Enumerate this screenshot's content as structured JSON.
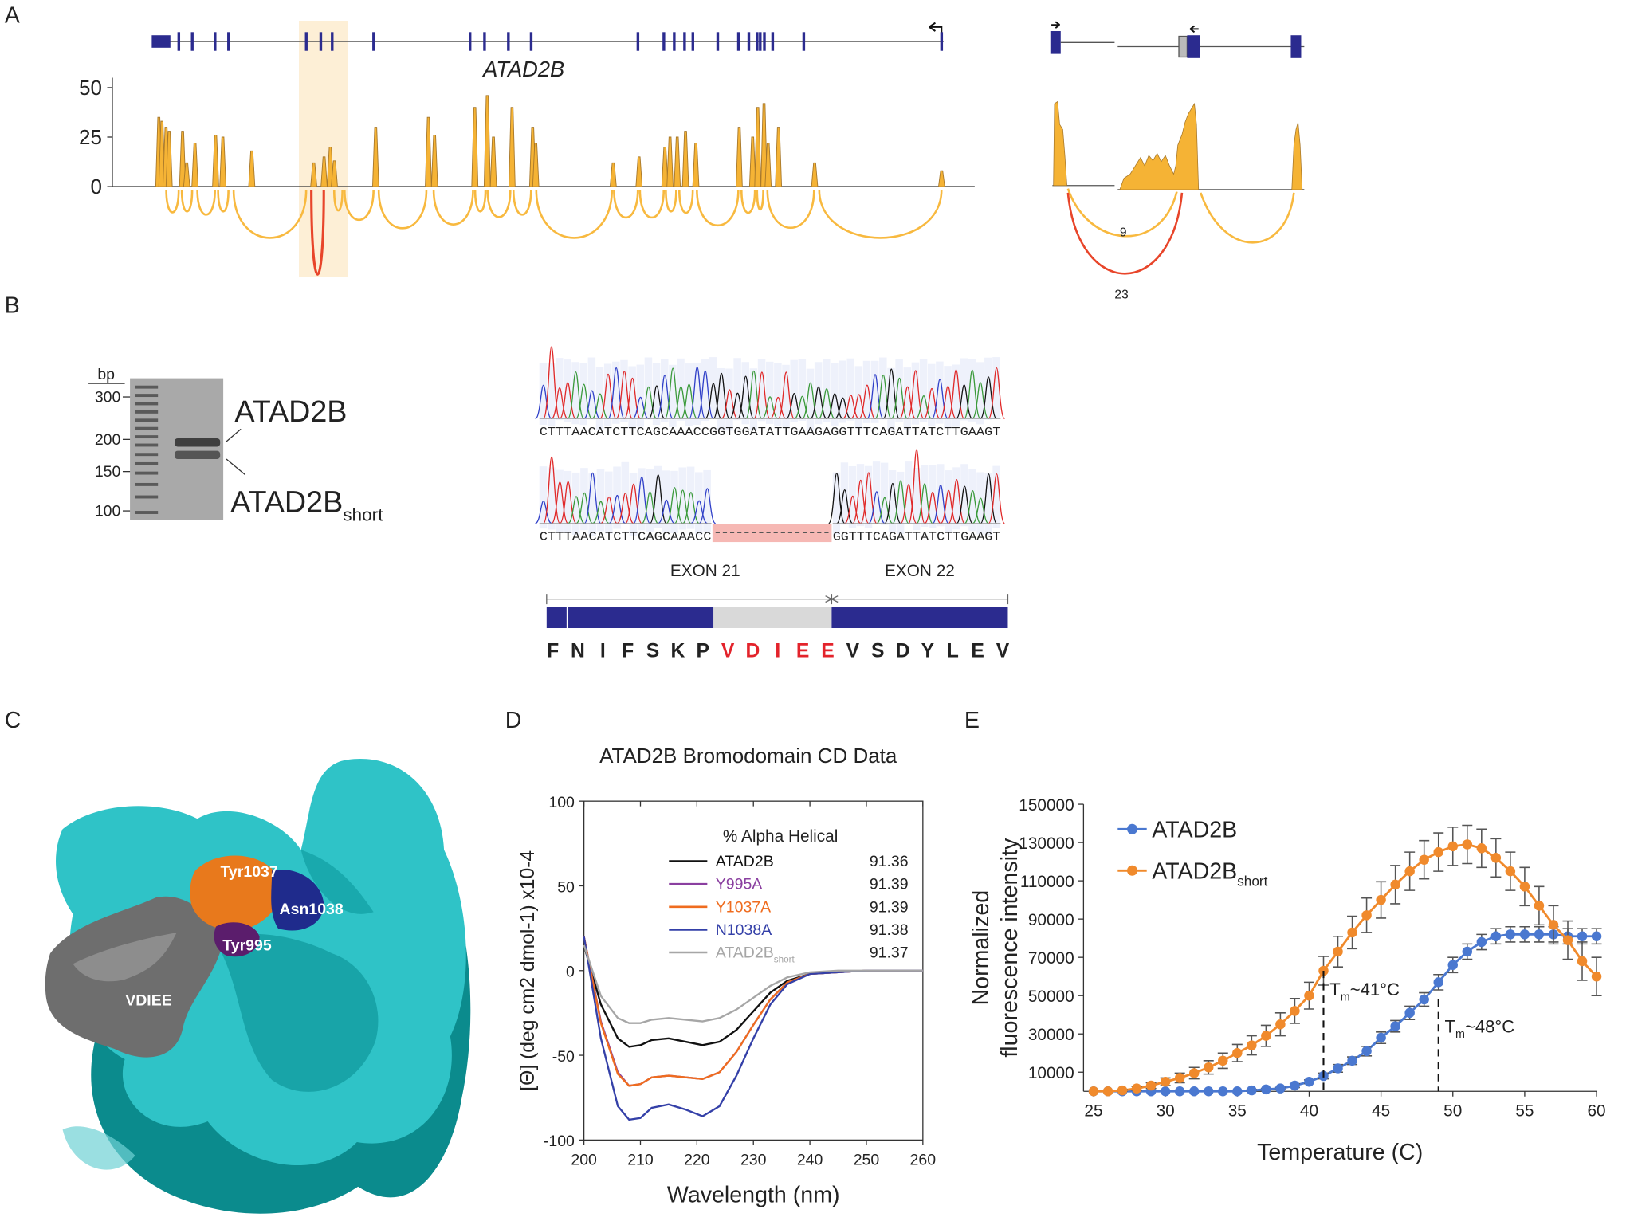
{
  "panel_labels": [
    "A",
    "B",
    "C",
    "D",
    "E"
  ],
  "panel_a": {
    "gene": "ATAD2B",
    "junction_counts": [
      "9",
      "23"
    ]
  },
  "panel_b": {
    "ladder_unit": "bp",
    "ladder": [
      300,
      200,
      150,
      100
    ],
    "band_labels": [
      {
        "name": "ATAD2B"
      },
      {
        "name": "ATAD2B",
        "subscript": "short"
      }
    ],
    "sequence_full": "CTTTAACATCTTCAGCAAACCGGTGGATATTGAAGAGGTTTCAGATTATCTTGAAGT",
    "sequence_short_left": "CTTTAACATCTTCAGCAAACC",
    "sequence_short_right": "GGTTTCAGATTATCTTGAAGT",
    "exons": [
      "EXON 21",
      "EXON 22"
    ],
    "residues": [
      {
        "aa": "F",
        "color": "#222222"
      },
      {
        "aa": "N",
        "color": "#222222"
      },
      {
        "aa": "I",
        "color": "#222222"
      },
      {
        "aa": "F",
        "color": "#222222"
      },
      {
        "aa": "S",
        "color": "#222222"
      },
      {
        "aa": "K",
        "color": "#222222"
      },
      {
        "aa": "P",
        "color": "#222222"
      },
      {
        "aa": "V",
        "color": "#e3232b"
      },
      {
        "aa": "D",
        "color": "#e3232b"
      },
      {
        "aa": "I",
        "color": "#e3232b"
      },
      {
        "aa": "E",
        "color": "#e3232b"
      },
      {
        "aa": "E",
        "color": "#e3232b"
      },
      {
        "aa": "V",
        "color": "#222222"
      },
      {
        "aa": "S",
        "color": "#222222"
      },
      {
        "aa": "D",
        "color": "#222222"
      },
      {
        "aa": "Y",
        "color": "#222222"
      },
      {
        "aa": "L",
        "color": "#222222"
      },
      {
        "aa": "E",
        "color": "#222222"
      },
      {
        "aa": "V",
        "color": "#222222"
      }
    ]
  },
  "panel_c": {
    "labels": [
      "Tyr1037",
      "Asn1038",
      "Tyr995",
      "VDIEE"
    ]
  },
  "chart_data": [
    {
      "type": "coverage",
      "color": "#f5b335",
      "stroke_color": "#a8782a",
      "xlim": [
        105,
        940
      ],
      "ylim": [
        0,
        55
      ],
      "yticks": [
        0,
        25,
        50
      ],
      "x": [
        150,
        153,
        157,
        160,
        173,
        177,
        185,
        205,
        212,
        240,
        300,
        310,
        316,
        320,
        360,
        411,
        417,
        456,
        468,
        474,
        492,
        512,
        515,
        590,
        615,
        640,
        645,
        652,
        660,
        670,
        712,
        725,
        730,
        736,
        740,
        750,
        785,
        908
      ],
      "values": [
        35,
        33,
        30,
        28,
        28,
        12,
        22,
        26,
        25,
        18,
        12,
        15,
        20,
        13,
        30,
        35,
        26,
        40,
        46,
        25,
        40,
        30,
        22,
        12,
        15,
        20,
        25,
        25,
        28,
        22,
        30,
        25,
        40,
        42,
        22,
        30,
        12,
        8
      ]
    },
    {
      "type": "line",
      "title": "ATAD2B Bromodomain CD Data",
      "xlabel": "Wavelength (nm)",
      "ylabel": "[Θ] (deg cm2 dmol-1) x10-4",
      "legend_title": "% Alpha Helical",
      "frame": true,
      "xlim": [
        200,
        260
      ],
      "ylim": [
        -100,
        100
      ],
      "xticks": [
        200,
        210,
        220,
        230,
        240,
        250,
        260
      ],
      "yticks": [
        -100,
        -50,
        0,
        50,
        100
      ],
      "x": [
        200,
        203,
        206,
        208,
        210,
        212,
        215,
        218,
        221,
        224,
        227,
        230,
        233,
        236,
        240,
        245,
        250,
        260
      ],
      "series": [
        {
          "name": "ATAD2B",
          "helicity": 91.36,
          "color": "#111111",
          "values": [
            15,
            -20,
            -40,
            -45,
            -44,
            -41,
            -40,
            -42,
            -44,
            -42,
            -35,
            -24,
            -13,
            -6,
            -2,
            -1,
            0,
            0
          ]
        },
        {
          "name": "Y995A",
          "helicity": 91.39,
          "color": "#8a3fa0",
          "values": [
            20,
            -30,
            -60,
            -68,
            -67,
            -63,
            -62,
            -63,
            -64,
            -60,
            -48,
            -32,
            -17,
            -7,
            -2,
            -1,
            0,
            0
          ]
        },
        {
          "name": "Y1037A",
          "helicity": 91.39,
          "color": "#ef6c1f",
          "values": [
            20,
            -31,
            -61,
            -68,
            -67,
            -63,
            -62,
            -63,
            -64,
            -60,
            -48,
            -32,
            -17,
            -7,
            -2,
            -1,
            0,
            0
          ]
        },
        {
          "name": "N1038A",
          "helicity": 91.38,
          "color": "#3440a8",
          "values": [
            20,
            -40,
            -80,
            -88,
            -87,
            -81,
            -79,
            -82,
            -86,
            -80,
            -62,
            -40,
            -20,
            -8,
            -2,
            -1,
            0,
            0
          ]
        },
        {
          "name": "ATAD2B",
          "name_subscript": "short",
          "helicity": 91.37,
          "color": "#a6a6a6",
          "values": [
            15,
            -15,
            -28,
            -31,
            -31,
            -29,
            -28,
            -29,
            -30,
            -28,
            -23,
            -16,
            -9,
            -4,
            -1,
            0,
            0,
            0
          ]
        }
      ]
    },
    {
      "type": "line",
      "markers": true,
      "xlabel": "Temperature (C)",
      "ylabel": [
        "Normalized",
        "fluorescence intensity"
      ],
      "xlim": [
        24.3,
        60
      ],
      "ylim": [
        0,
        150000
      ],
      "xticks": [
        25,
        30,
        35,
        40,
        45,
        50,
        55,
        60
      ],
      "yticks": [
        10000,
        30000,
        50000,
        70000,
        90000,
        110000,
        130000,
        150000
      ],
      "x": [
        25,
        26,
        27,
        28,
        29,
        30,
        31,
        32,
        33,
        34,
        35,
        36,
        37,
        38,
        39,
        40,
        41,
        42,
        43,
        44,
        45,
        46,
        47,
        48,
        49,
        50,
        51,
        52,
        53,
        54,
        55,
        56,
        57,
        58,
        59,
        60
      ],
      "series": [
        {
          "name": "ATAD2B",
          "color": "#4a78d0",
          "values": [
            0,
            0,
            0,
            0,
            0,
            0,
            0,
            0,
            0,
            0,
            0,
            500,
            1000,
            1500,
            3000,
            5000,
            8000,
            12000,
            16000,
            21000,
            28000,
            34000,
            41000,
            48000,
            57000,
            66000,
            73000,
            78000,
            81000,
            82000,
            82000,
            82000,
            82000,
            81000,
            81000,
            81000
          ],
          "errors": [
            0,
            0,
            0,
            0,
            0,
            0,
            0,
            0,
            0,
            0,
            0,
            500,
            500,
            500,
            1000,
            1000,
            1500,
            2000,
            2000,
            2500,
            3000,
            3000,
            3500,
            3500,
            4000,
            4000,
            4000,
            4000,
            4000,
            4000,
            4000,
            4000,
            4000,
            4000,
            4000,
            4000
          ]
        },
        {
          "name": "ATAD2B",
          "name_subscript": "short",
          "color": "#f08a2c",
          "values": [
            0,
            0,
            500,
            1500,
            3000,
            5000,
            7000,
            9500,
            12500,
            16000,
            20000,
            24000,
            29000,
            35000,
            42000,
            50000,
            63000,
            73000,
            83000,
            92000,
            100000,
            108000,
            115000,
            121000,
            125000,
            128000,
            129000,
            127000,
            122000,
            115000,
            107000,
            97000,
            87000,
            79000,
            68000,
            60000
          ],
          "errors": [
            0,
            0,
            500,
            1000,
            1500,
            2000,
            2500,
            3000,
            3500,
            4000,
            4500,
            5000,
            5500,
            6000,
            6500,
            7000,
            7500,
            8000,
            8500,
            9000,
            9500,
            10000,
            10000,
            10000,
            10000,
            10000,
            10000,
            10000,
            10000,
            10000,
            10000,
            10000,
            10000,
            10000,
            10000,
            10000
          ]
        }
      ],
      "annotations": [
        {
          "x": 41,
          "y": 63000,
          "text": "T",
          "subscript": "m",
          "rest": "~41°C"
        },
        {
          "x": 49,
          "y": 48000,
          "text": "T",
          "subscript": "m",
          "rest": "~48°C"
        }
      ]
    }
  ]
}
